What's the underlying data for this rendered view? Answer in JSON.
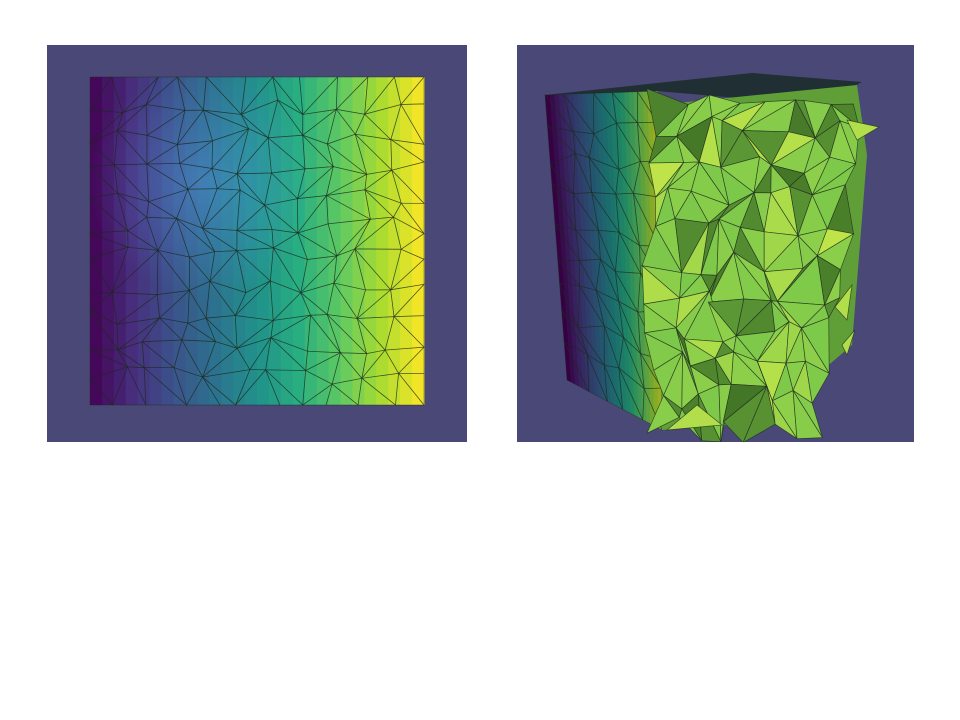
{
  "figure": {
    "background": "#ffffff",
    "panel_background": "#4a4877",
    "colormap": "viridis",
    "colormap_stops": [
      "#440154",
      "#472d7b",
      "#3b528b",
      "#2c728e",
      "#21918c",
      "#28ae80",
      "#5ec962",
      "#addc30",
      "#fde725"
    ],
    "clip_face_color": "#7cc84a",
    "clip_face_shadow_color": "#3d6b22",
    "clip_face_highlight_color": "#c8e84a",
    "edge_color": "#1e2a1e"
  },
  "panels": [
    {
      "id": "left",
      "view": "front-face",
      "description_icon": "mesh-square-icon"
    },
    {
      "id": "right",
      "view": "clipped-cube",
      "description_icon": "mesh-cube-icon"
    }
  ]
}
